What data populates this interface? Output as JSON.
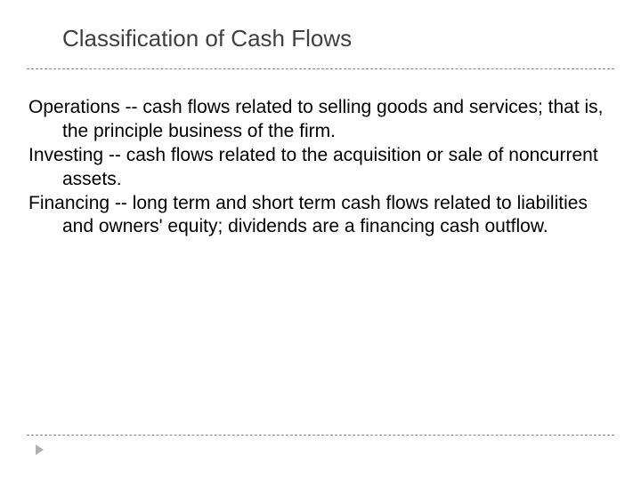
{
  "slide": {
    "title": "Classification of Cash Flows",
    "title_color": "#3f3f3f",
    "title_fontsize": 26,
    "body_fontsize": 21,
    "body_color": "#000000",
    "background_color": "#ffffff",
    "divider_color": "#888888",
    "bullet_color": "#b0b0b0",
    "items": [
      {
        "text": "Operations -- cash flows related to selling goods and services; that is, the principle business of the firm."
      },
      {
        "text": "Investing -- cash flows related to the acquisition or sale of noncurrent assets."
      },
      {
        "text": "Financing -- long term and short term cash flows related to liabilities and owners' equity; dividends are a financing cash outflow."
      }
    ]
  }
}
